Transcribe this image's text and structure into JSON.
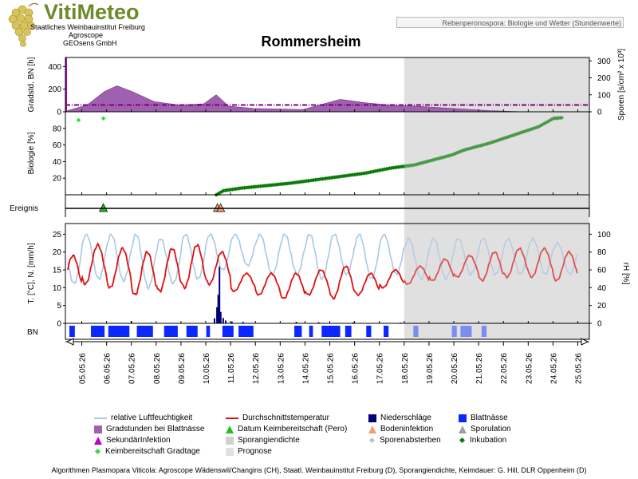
{
  "header": {
    "brand_title": "VitiMeteo",
    "brand_lines": [
      "Staatliches Weinbauinstitut Freiburg",
      "Agroscope",
      "GEOsens GmbH"
    ],
    "info_box": "Rebenperonospora: Biologie und Wetter (Stundenwerte)",
    "page_title": "Rommersheim"
  },
  "colors": {
    "humidity": "#a8c8e4",
    "temperature": "#e01010",
    "precipitation": "#00007a",
    "leaf_wetness": "#0a28ff",
    "degree_hours": "#a060b0",
    "germination": "#0a7a0a",
    "forecast_bg": "#e0e0e0",
    "spore_line": "#800080"
  },
  "footer": {
    "credits": "Algorithmen Plasmopara Viticola: Agroscope Wädenswil/Changins (CH), Staatl. Weinbauinstitut Freiburg (D), Sporangiendichte, Keimdauer: G. Hill, DLR Oppenheim (D)"
  },
  "legend": [
    {
      "label": "relative Luftfeuchtigkeit",
      "symbol": "line",
      "color": "#a8c8e4"
    },
    {
      "label": "Durchschnittstemperatur",
      "symbol": "line",
      "color": "#e01010"
    },
    {
      "label": "Niederschläge",
      "symbol": "square",
      "color": "#00007a"
    },
    {
      "label": "Blattnässe",
      "symbol": "square",
      "color": "#0a28ff"
    },
    {
      "label": "Gradstunden bei Blattnässe",
      "symbol": "square",
      "color": "#a060b0"
    },
    {
      "label": "Datum Keimbereitschaft (Pero)",
      "symbol": "triangle",
      "color": "#20c020"
    },
    {
      "label": "Bodeninfektion",
      "symbol": "triangle",
      "color": "#f0a070"
    },
    {
      "label": "Sporulation",
      "symbol": "triangle",
      "color": "#a0a0a0"
    },
    {
      "label": "SekundärInfektion",
      "symbol": "triangle",
      "color": "#c000c0"
    },
    {
      "label": "Sporangiendichte",
      "symbol": "square",
      "color": "#d0d0d0"
    },
    {
      "label": "Sporenabsterben",
      "symbol": "diamond",
      "color": "#c0c0c0"
    },
    {
      "label": "Inkubation",
      "symbol": "diamond",
      "color": "#0a7a0a"
    },
    {
      "label": "Keimbereitschaft Gradtage",
      "symbol": "diamond",
      "color": "#30e030"
    },
    {
      "label": "Prognose",
      "symbol": "square",
      "color": "#e0e0e0"
    }
  ],
  "chart_data": {
    "type": "line",
    "x_labels": [
      "05.05.26",
      "06.05.26",
      "07.05.26",
      "08.05.26",
      "09.05.26",
      "10.05.26",
      "11.05.26",
      "12.05.26",
      "13.05.26",
      "14.05.26",
      "15.05.26",
      "16.05.26",
      "17.05.26",
      "18.05.26",
      "19.05.26",
      "20.05.26",
      "21.05.26",
      "22.05.26",
      "23.05.26",
      "24.05.26",
      "25.05.26"
    ],
    "forecast_start": "18.05.26",
    "panels": {
      "gradstunden": {
        "ylabel": "Gradstd. BN [h]",
        "y2label": "Sporen [s/cm² x 10³]",
        "yticks": [
          0,
          200,
          400
        ],
        "y2ticks": [
          0,
          100,
          200,
          300
        ],
        "ylim": [
          0,
          480
        ],
        "y2lim": [
          0,
          320
        ],
        "spore_level_y2": 40,
        "degree_hours": [
          [
            0,
            10
          ],
          [
            0.8,
            60
          ],
          [
            1.5,
            180
          ],
          [
            2.0,
            230
          ],
          [
            2.6,
            180
          ],
          [
            3.5,
            90
          ],
          [
            4.5,
            60
          ],
          [
            5.5,
            70
          ],
          [
            6.0,
            150
          ],
          [
            6.5,
            50
          ],
          [
            7.5,
            30
          ],
          [
            9.5,
            20
          ],
          [
            10.5,
            80
          ],
          [
            11.0,
            110
          ],
          [
            12.0,
            80
          ],
          [
            13.0,
            60
          ],
          [
            14.0,
            50
          ],
          [
            17.0,
            10
          ],
          [
            18.5,
            0
          ],
          [
            21,
            0
          ]
        ]
      },
      "biologie": {
        "ylabel": "Biologie [%]",
        "yticks": [
          20,
          40,
          60,
          80
        ],
        "ylim": [
          0,
          100
        ],
        "germination_gradtage": [
          [
            0.45,
            90
          ],
          [
            1.45,
            92
          ]
        ],
        "incubation": [
          [
            6.0,
            0
          ],
          [
            6.3,
            5
          ],
          [
            7,
            8
          ],
          [
            8,
            11
          ],
          [
            9,
            14
          ],
          [
            10,
            18
          ],
          [
            11,
            22
          ],
          [
            12,
            26
          ],
          [
            13,
            32
          ],
          [
            14,
            36
          ],
          [
            15,
            44
          ],
          [
            15.5,
            48
          ],
          [
            16,
            54
          ],
          [
            17,
            62
          ],
          [
            18,
            72
          ],
          [
            19,
            82
          ],
          [
            19.6,
            92
          ],
          [
            20,
            93
          ]
        ]
      },
      "ereignis": {
        "ylabel": "Ereignis",
        "events": [
          {
            "type": "Datum Keimbereitschaft (Pero)",
            "x": 1.45
          },
          {
            "type": "Bodeninfektion",
            "x": 6.05
          },
          {
            "type": "Bodeninfektion",
            "x": 6.18
          }
        ]
      },
      "wetter": {
        "ylabel": "T. [°C], N. [mm/h]",
        "y2label": "rH [%]",
        "yticks": [
          0,
          5,
          10,
          15,
          20,
          25
        ],
        "ylim": [
          0,
          28
        ],
        "y2ticks": [
          0,
          20,
          40,
          60,
          80,
          100
        ],
        "y2lim": [
          0,
          112
        ],
        "temperature_daily": [
          {
            "min": 9,
            "max": 19
          },
          {
            "min": 11,
            "max": 22
          },
          {
            "min": 10,
            "max": 21
          },
          {
            "min": 8,
            "max": 20
          },
          {
            "min": 9,
            "max": 21
          },
          {
            "min": 10,
            "max": 22
          },
          {
            "min": 11,
            "max": 20
          },
          {
            "min": 9,
            "max": 14
          },
          {
            "min": 8,
            "max": 14
          },
          {
            "min": 7,
            "max": 14
          },
          {
            "min": 8,
            "max": 15
          },
          {
            "min": 7,
            "max": 16
          },
          {
            "min": 8,
            "max": 14
          },
          {
            "min": 10,
            "max": 15
          },
          {
            "min": 11,
            "max": 16
          },
          {
            "min": 12,
            "max": 18
          },
          {
            "min": 13,
            "max": 19
          },
          {
            "min": 12,
            "max": 20
          },
          {
            "min": 13,
            "max": 21
          },
          {
            "min": 13,
            "max": 21
          },
          {
            "min": 12,
            "max": 20
          }
        ],
        "humidity_daily": [
          {
            "min": 45,
            "max": 95
          },
          {
            "min": 50,
            "max": 100
          },
          {
            "min": 48,
            "max": 100
          },
          {
            "min": 40,
            "max": 100
          },
          {
            "min": 45,
            "max": 95
          },
          {
            "min": 50,
            "max": 100
          },
          {
            "min": 60,
            "max": 100
          },
          {
            "min": 65,
            "max": 100
          },
          {
            "min": 55,
            "max": 100
          },
          {
            "min": 55,
            "max": 100
          },
          {
            "min": 50,
            "max": 100
          },
          {
            "min": 55,
            "max": 100
          },
          {
            "min": 50,
            "max": 100
          },
          {
            "min": 55,
            "max": 100
          },
          {
            "min": 50,
            "max": 95
          },
          {
            "min": 50,
            "max": 95
          },
          {
            "min": 55,
            "max": 95
          },
          {
            "min": 55,
            "max": 95
          },
          {
            "min": 55,
            "max": 95
          },
          {
            "min": 55,
            "max": 95
          },
          {
            "min": 55,
            "max": 90
          }
        ],
        "precipitation": [
          [
            2.55,
            0.6
          ],
          [
            5.9,
            1.4
          ],
          [
            6.0,
            4.5
          ],
          [
            6.05,
            8.0
          ],
          [
            6.1,
            16.0
          ],
          [
            6.15,
            3.2
          ],
          [
            6.25,
            1.5
          ],
          [
            6.35,
            0.8
          ],
          [
            6.6,
            0.5
          ],
          [
            7.05,
            0.4
          ],
          [
            9.2,
            0.4
          ],
          [
            10.1,
            0.3
          ],
          [
            11.5,
            0.3
          ],
          [
            13.4,
            0.2
          ]
        ]
      },
      "bn": {
        "ylabel": "BN",
        "leaf_wetness_intervals": [
          [
            0.08,
            0.3
          ],
          [
            0.95,
            1.5
          ],
          [
            1.65,
            2.5
          ],
          [
            2.8,
            3.45
          ],
          [
            3.9,
            4.45
          ],
          [
            4.8,
            5.25
          ],
          [
            5.6,
            5.75
          ],
          [
            6.25,
            6.7
          ],
          [
            6.9,
            7.5
          ],
          [
            9.15,
            9.45
          ],
          [
            9.75,
            9.9
          ],
          [
            10.25,
            11.0
          ],
          [
            11.2,
            11.45
          ],
          [
            12.05,
            12.25
          ],
          [
            12.75,
            12.95
          ],
          [
            13.95,
            14.15
          ],
          [
            15.5,
            15.7
          ],
          [
            15.85,
            16.3
          ],
          [
            16.7,
            16.9
          ]
        ]
      }
    }
  }
}
